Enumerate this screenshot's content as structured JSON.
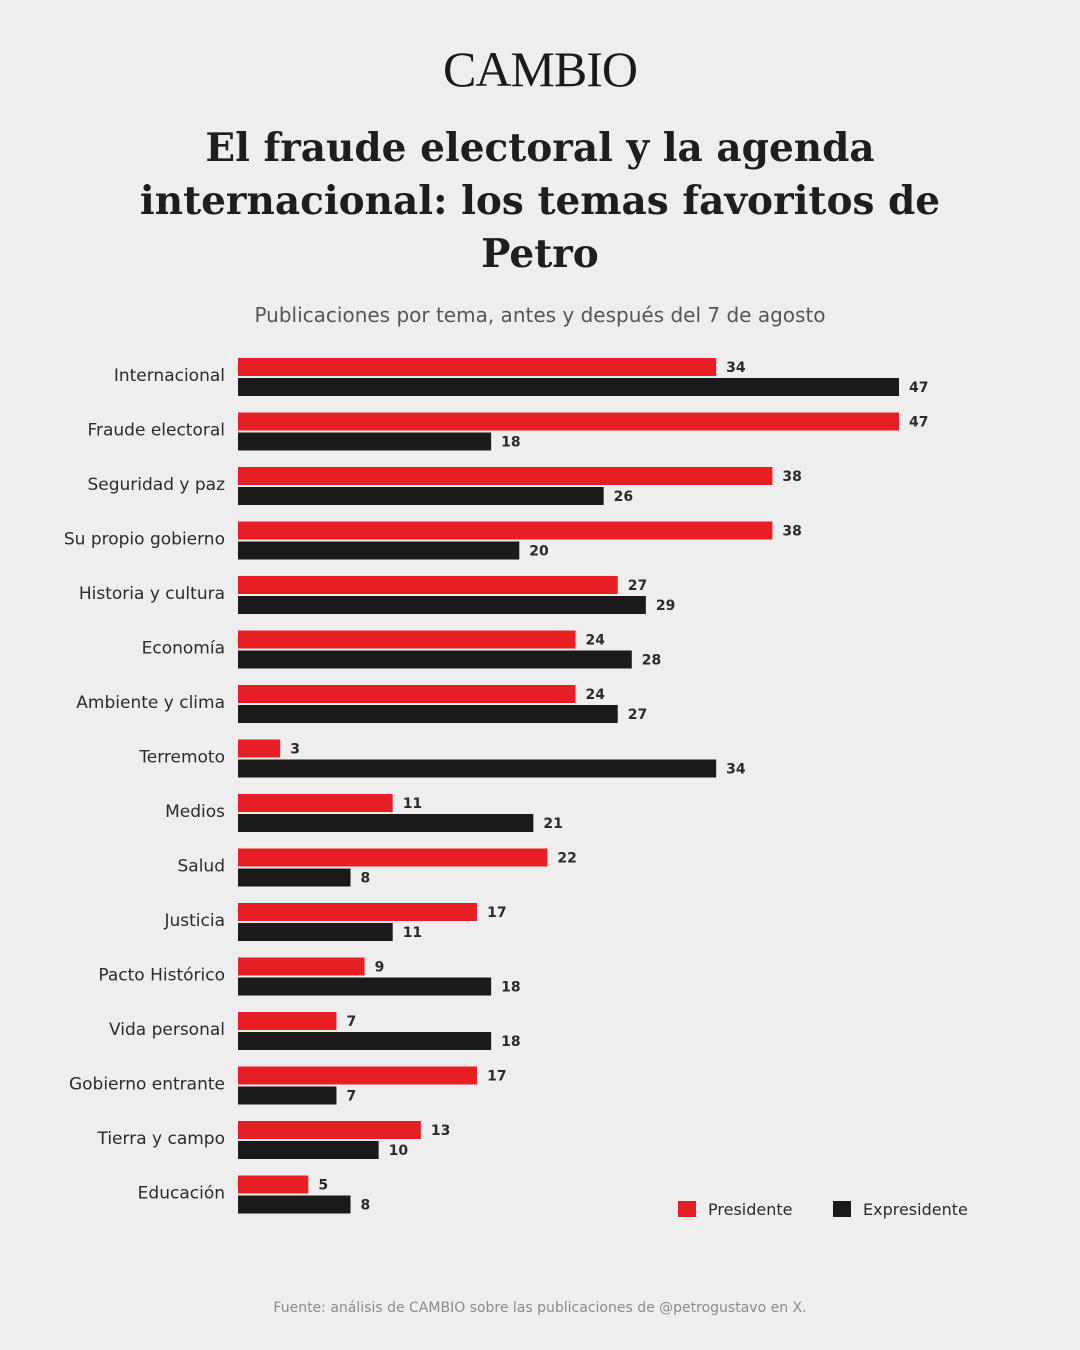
{
  "brand": "CAMBIO",
  "colors": {
    "presidente": "#e81e25",
    "expresidente": "#1a1a1a",
    "background": "#eeeeee"
  },
  "chart_data": {
    "type": "bar",
    "orientation": "horizontal",
    "title": "El fraude electoral y la agenda internacional: los temas favoritos de Petro",
    "subtitle": "Publicaciones por tema, antes y después del 7 de agosto",
    "categories": [
      "Internacional",
      "Fraude electoral",
      "Seguridad y paz",
      "Su propio gobierno",
      "Historia y cultura",
      "Economía",
      "Ambiente y clima",
      "Terremoto",
      "Medios",
      "Salud",
      "Justicia",
      "Pacto Histórico",
      "Vida personal",
      "Gobierno entrante",
      "Tierra y campo",
      "Educación"
    ],
    "series": [
      {
        "name": "Presidente",
        "color": "#e81e25",
        "values": [
          34,
          47,
          38,
          38,
          27,
          24,
          24,
          3,
          11,
          22,
          17,
          9,
          7,
          17,
          13,
          5
        ]
      },
      {
        "name": "Expresidente",
        "color": "#1a1a1a",
        "values": [
          47,
          18,
          26,
          20,
          29,
          28,
          27,
          34,
          21,
          8,
          11,
          18,
          18,
          7,
          10,
          8
        ]
      }
    ],
    "xlim": [
      0,
      47
    ],
    "grid": false,
    "data_labels": true,
    "legend_position": "bottom-right",
    "source": "Fuente: análisis de CAMBIO sobre las publicaciones de @petrogustavo en X."
  }
}
